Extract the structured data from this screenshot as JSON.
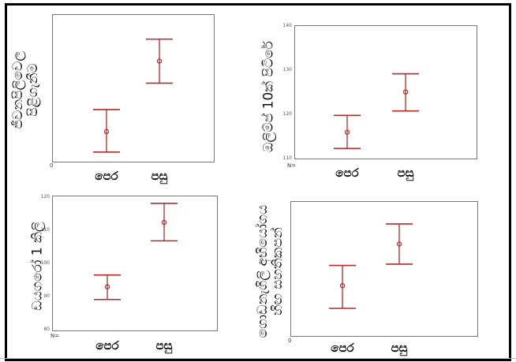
{
  "chart_data": [
    {
      "type": "errorbar",
      "ylabel_lines": [
        "ජීවනපිලිවෙල",
        "පිළිගැනීම"
      ],
      "categories": [
        "පෙර",
        "පසු"
      ],
      "series": [
        {
          "mean": [
            0.2,
            0.68
          ],
          "lower": [
            0.06,
            0.53
          ],
          "upper": [
            0.35,
            0.83
          ]
        }
      ],
      "yticks": [],
      "ylim": [
        0,
        1
      ],
      "origin_label": "0",
      "color": "#b02a2a"
    },
    {
      "type": "errorbar",
      "ylabel_lines": [
        "ඔලිම්ප් 10ක් පිටිරේ"
      ],
      "categories": [
        "පෙර",
        "පසු"
      ],
      "series": [
        {
          "mean": [
            115.8,
            124.9
          ],
          "lower": [
            112.1,
            120.6
          ],
          "upper": [
            119.6,
            129.0
          ]
        }
      ],
      "yticks": [
        "110",
        "120",
        "130",
        "140"
      ],
      "ylim": [
        110,
        140
      ],
      "origin_label": "N=",
      "color": "#b02a2a"
    },
    {
      "type": "errorbar",
      "ylabel_lines": [
        "ඩයගරෝ 1 කිලි"
      ],
      "categories": [
        "පෙර",
        "පසු"
      ],
      "series": [
        {
          "mean": [
            92.8,
            112.0
          ],
          "lower": [
            89.0,
            106.5
          ],
          "upper": [
            96.3,
            117.7
          ]
        }
      ],
      "yticks": [
        "80",
        "90",
        "100",
        "110",
        "120"
      ],
      "ylim": [
        80,
        120
      ],
      "origin_label": "N=",
      "color": "#b02a2a"
    },
    {
      "type": "errorbar",
      "ylabel_lines": [
        "ගොඩනැගිලි අභියෝගය",
        "හිඟ සහතිකපන්"
      ],
      "categories": [
        "පෙර",
        "පසු"
      ],
      "series": [
        {
          "mean": [
            0.37,
            0.68
          ],
          "lower": [
            0.2,
            0.53
          ],
          "upper": [
            0.52,
            0.83
          ]
        }
      ],
      "yticks": [],
      "ylim": [
        0,
        1
      ],
      "origin_label": "0",
      "color": "#b02a2a"
    }
  ]
}
